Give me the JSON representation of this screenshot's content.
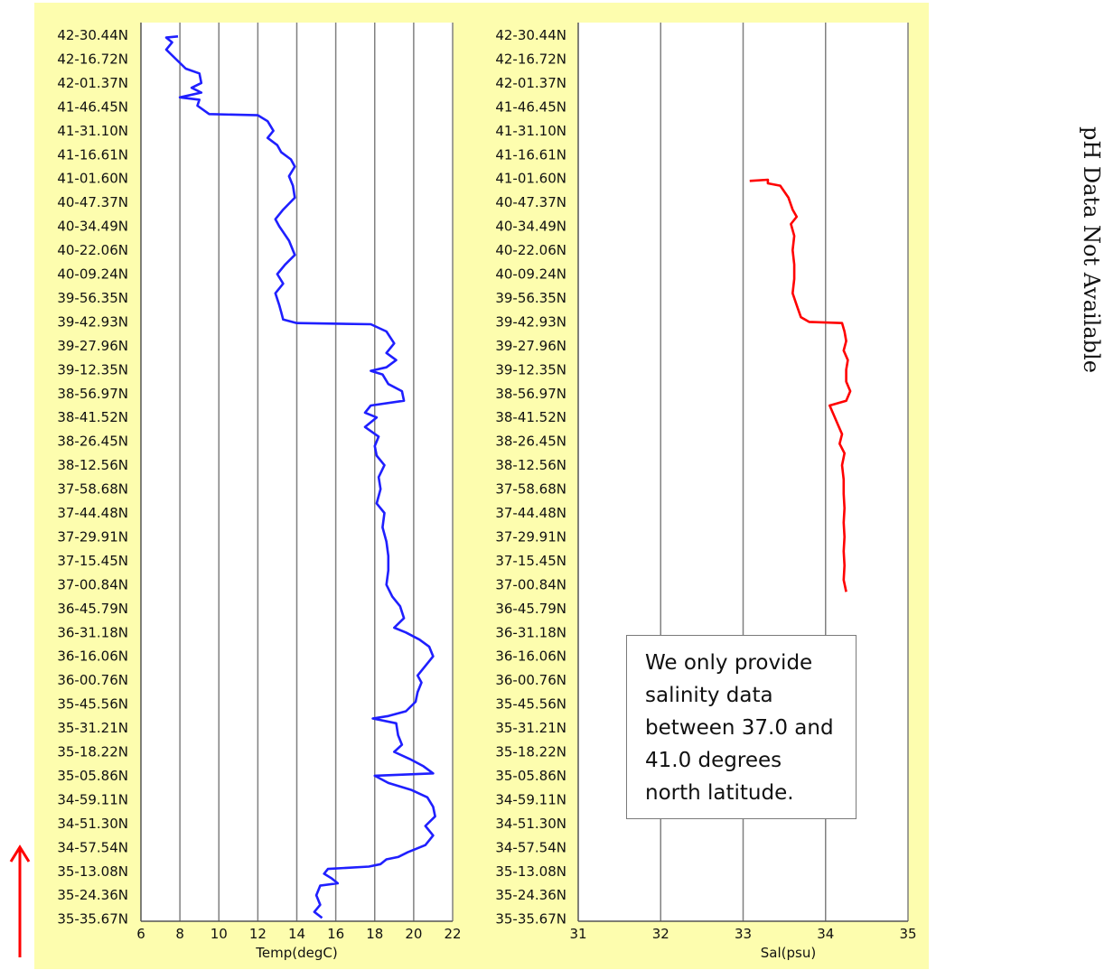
{
  "chart_data": [
    {
      "type": "line",
      "xlabel": "Temp(degC)",
      "x_ticks": [
        6,
        8,
        10,
        12,
        14,
        16,
        18,
        20,
        22
      ],
      "xlim": [
        6,
        22
      ],
      "y_tick_labels": [
        "42-30.44N",
        "42-16.72N",
        "42-01.37N",
        "41-46.45N",
        "41-31.10N",
        "41-16.61N",
        "41-01.60N",
        "40-47.37N",
        "40-34.49N",
        "40-22.06N",
        "40-09.24N",
        "39-56.35N",
        "39-42.93N",
        "39-27.96N",
        "39-12.35N",
        "38-56.97N",
        "38-41.52N",
        "38-26.45N",
        "38-12.56N",
        "37-58.68N",
        "37-44.48N",
        "37-29.91N",
        "37-15.45N",
        "37-00.84N",
        "36-45.79N",
        "36-31.18N",
        "36-16.06N",
        "36-00.76N",
        "35-45.56N",
        "35-31.21N",
        "35-18.22N",
        "35-05.86N",
        "34-59.11N",
        "34-51.30N",
        "34-57.54N",
        "35-13.08N",
        "35-24.36N",
        "35-35.67N"
      ],
      "grid": true,
      "series": [
        {
          "color": "#1f1fff",
          "points": [
            [
              7.9,
              0.05
            ],
            [
              7.3,
              0.1
            ],
            [
              7.6,
              0.3
            ],
            [
              7.3,
              0.6
            ],
            [
              7.8,
              1.0
            ],
            [
              8.3,
              1.4
            ],
            [
              9.0,
              1.6
            ],
            [
              9.1,
              2.0
            ],
            [
              8.6,
              2.2
            ],
            [
              9.1,
              2.4
            ],
            [
              8.0,
              2.6
            ],
            [
              9.0,
              2.7
            ],
            [
              8.9,
              2.95
            ],
            [
              9.5,
              3.3
            ],
            [
              12.0,
              3.35
            ],
            [
              12.5,
              3.6
            ],
            [
              12.8,
              4.0
            ],
            [
              12.5,
              4.3
            ],
            [
              13.0,
              4.6
            ],
            [
              13.2,
              4.9
            ],
            [
              13.7,
              5.2
            ],
            [
              13.9,
              5.5
            ],
            [
              13.6,
              5.9
            ],
            [
              13.8,
              6.3
            ],
            [
              13.9,
              6.8
            ],
            [
              13.3,
              7.3
            ],
            [
              12.9,
              7.7
            ],
            [
              13.1,
              8.0
            ],
            [
              13.6,
              8.6
            ],
            [
              13.9,
              9.2
            ],
            [
              13.4,
              9.6
            ],
            [
              13.0,
              10.0
            ],
            [
              13.3,
              10.4
            ],
            [
              12.9,
              10.8
            ],
            [
              13.1,
              11.3
            ],
            [
              13.2,
              11.6
            ],
            [
              13.3,
              11.9
            ],
            [
              14.0,
              12.05
            ],
            [
              17.8,
              12.1
            ],
            [
              18.6,
              12.4
            ],
            [
              19.0,
              12.9
            ],
            [
              18.6,
              13.3
            ],
            [
              19.1,
              13.6
            ],
            [
              18.6,
              13.9
            ],
            [
              17.8,
              14.05
            ],
            [
              18.4,
              14.2
            ],
            [
              18.7,
              14.6
            ],
            [
              19.4,
              14.9
            ],
            [
              19.5,
              15.3
            ],
            [
              17.8,
              15.5
            ],
            [
              17.5,
              15.8
            ],
            [
              18.1,
              16.0
            ],
            [
              17.5,
              16.4
            ],
            [
              18.2,
              16.8
            ],
            [
              18.0,
              17.2
            ],
            [
              18.1,
              17.6
            ],
            [
              18.5,
              18.0
            ],
            [
              18.2,
              18.5
            ],
            [
              18.3,
              19.0
            ],
            [
              18.1,
              19.6
            ],
            [
              18.5,
              20.0
            ],
            [
              18.4,
              20.6
            ],
            [
              18.6,
              21.2
            ],
            [
              18.7,
              21.8
            ],
            [
              18.7,
              22.4
            ],
            [
              18.6,
              23.0
            ],
            [
              18.9,
              23.5
            ],
            [
              19.3,
              23.9
            ],
            [
              19.5,
              24.4
            ],
            [
              19.0,
              24.8
            ],
            [
              19.6,
              25.0
            ],
            [
              20.3,
              25.3
            ],
            [
              20.8,
              25.6
            ],
            [
              21.0,
              26.0
            ],
            [
              20.6,
              26.4
            ],
            [
              20.2,
              26.8
            ],
            [
              20.4,
              27.1
            ],
            [
              20.2,
              27.5
            ],
            [
              20.1,
              27.9
            ],
            [
              19.6,
              28.3
            ],
            [
              18.7,
              28.5
            ],
            [
              17.9,
              28.6
            ],
            [
              19.1,
              28.8
            ],
            [
              19.2,
              29.3
            ],
            [
              19.4,
              29.7
            ],
            [
              19.0,
              30.0
            ],
            [
              19.8,
              30.3
            ],
            [
              20.5,
              30.6
            ],
            [
              21.0,
              30.9
            ],
            [
              18.0,
              31.0
            ],
            [
              18.7,
              31.3
            ],
            [
              19.9,
              31.6
            ],
            [
              20.7,
              31.9
            ],
            [
              21.0,
              32.3
            ],
            [
              21.1,
              32.7
            ],
            [
              20.6,
              33.1
            ],
            [
              21.0,
              33.5
            ],
            [
              20.6,
              33.9
            ],
            [
              19.7,
              34.2
            ],
            [
              19.2,
              34.4
            ],
            [
              18.6,
              34.5
            ],
            [
              18.3,
              34.7
            ],
            [
              17.7,
              34.8
            ],
            [
              15.6,
              34.9
            ],
            [
              15.4,
              35.1
            ],
            [
              15.8,
              35.3
            ],
            [
              16.1,
              35.5
            ],
            [
              15.2,
              35.6
            ],
            [
              15.0,
              36.0
            ],
            [
              15.2,
              36.4
            ],
            [
              14.9,
              36.7
            ],
            [
              15.3,
              36.95
            ]
          ]
        }
      ]
    },
    {
      "type": "line",
      "xlabel": "Sal(psu)",
      "x_ticks": [
        31,
        32,
        33,
        34,
        35
      ],
      "xlim": [
        31,
        35
      ],
      "y_tick_labels": [
        "42-30.44N",
        "42-16.72N",
        "42-01.37N",
        "41-46.45N",
        "41-31.10N",
        "41-16.61N",
        "41-01.60N",
        "40-47.37N",
        "40-34.49N",
        "40-22.06N",
        "40-09.24N",
        "39-56.35N",
        "39-42.93N",
        "39-27.96N",
        "39-12.35N",
        "38-56.97N",
        "38-41.52N",
        "38-26.45N",
        "38-12.56N",
        "37-58.68N",
        "37-44.48N",
        "37-29.91N",
        "37-15.45N",
        "37-00.84N",
        "36-45.79N",
        "36-31.18N",
        "36-16.06N",
        "36-00.76N",
        "35-45.56N",
        "35-31.21N",
        "35-18.22N",
        "35-05.86N",
        "34-59.11N",
        "34-51.30N",
        "34-57.54N",
        "35-13.08N",
        "35-24.36N",
        "35-35.67N"
      ],
      "grid": true,
      "series": [
        {
          "color": "#ff0000",
          "points": [
            [
              33.08,
              6.1
            ],
            [
              33.3,
              6.05
            ],
            [
              33.3,
              6.2
            ],
            [
              33.45,
              6.3
            ],
            [
              33.55,
              6.8
            ],
            [
              33.6,
              7.3
            ],
            [
              33.65,
              7.6
            ],
            [
              33.58,
              7.9
            ],
            [
              33.62,
              8.4
            ],
            [
              33.6,
              9.0
            ],
            [
              33.62,
              9.6
            ],
            [
              33.62,
              10.2
            ],
            [
              33.6,
              10.8
            ],
            [
              33.65,
              11.3
            ],
            [
              33.7,
              11.8
            ],
            [
              33.8,
              12.0
            ],
            [
              34.2,
              12.05
            ],
            [
              34.23,
              12.4
            ],
            [
              34.25,
              12.8
            ],
            [
              34.22,
              13.2
            ],
            [
              34.27,
              13.6
            ],
            [
              34.25,
              14.0
            ],
            [
              34.25,
              14.5
            ],
            [
              34.3,
              14.9
            ],
            [
              34.25,
              15.3
            ],
            [
              34.05,
              15.5
            ],
            [
              34.1,
              15.9
            ],
            [
              34.15,
              16.3
            ],
            [
              34.2,
              16.7
            ],
            [
              34.17,
              17.1
            ],
            [
              34.23,
              17.5
            ],
            [
              34.2,
              18.0
            ],
            [
              34.22,
              18.6
            ],
            [
              34.22,
              19.2
            ],
            [
              34.23,
              19.8
            ],
            [
              34.22,
              20.4
            ],
            [
              34.23,
              21.0
            ],
            [
              34.22,
              21.6
            ],
            [
              34.23,
              22.2
            ],
            [
              34.22,
              22.8
            ],
            [
              34.25,
              23.3
            ]
          ]
        }
      ]
    }
  ],
  "note": {
    "lines": [
      "We only provide",
      "salinity data",
      "between 37.0 and",
      "41.0 degrees",
      "north latitude."
    ]
  },
  "side_note": "pH Data Not Available"
}
